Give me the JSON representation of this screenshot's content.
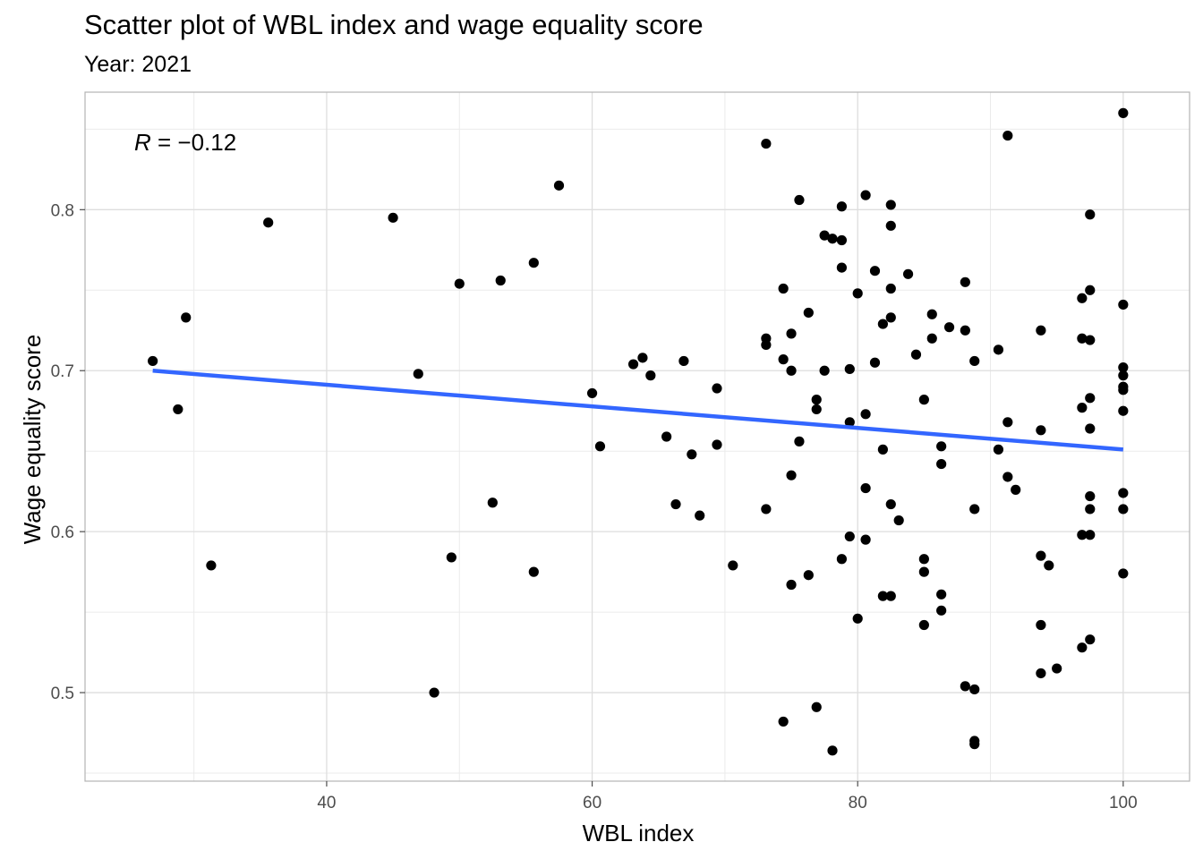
{
  "chart_data": {
    "type": "scatter",
    "title": "Scatter plot of WBL index and wage equality score",
    "subtitle": "Year: 2021",
    "xlabel": "WBL index",
    "ylabel": "Wage equality score",
    "xlim": [
      21.8,
      105
    ],
    "ylim": [
      0.445,
      0.873
    ],
    "x_ticks": [
      40,
      60,
      80,
      100
    ],
    "y_ticks": [
      0.5,
      0.6,
      0.7,
      0.8
    ],
    "x_tick_labels": [
      "40",
      "60",
      "80",
      "100"
    ],
    "y_tick_labels": [
      "0.5",
      "0.6",
      "0.7",
      "0.8"
    ],
    "grid": true,
    "annotation": {
      "italic": "R",
      "rest": " = −0.12"
    },
    "trend_line": {
      "x": [
        26.9,
        100
      ],
      "y": [
        0.7,
        0.651
      ],
      "color": "#3366FF"
    },
    "point_color": "#000000",
    "points": [
      [
        26.9,
        0.706
      ],
      [
        28.8,
        0.676
      ],
      [
        29.4,
        0.733
      ],
      [
        31.3,
        0.579
      ],
      [
        35.6,
        0.792
      ],
      [
        45.0,
        0.795
      ],
      [
        46.9,
        0.698
      ],
      [
        48.1,
        0.5
      ],
      [
        49.4,
        0.584
      ],
      [
        50.0,
        0.754
      ],
      [
        52.5,
        0.618
      ],
      [
        53.1,
        0.756
      ],
      [
        55.6,
        0.767
      ],
      [
        55.6,
        0.575
      ],
      [
        57.5,
        0.815
      ],
      [
        60.0,
        0.686
      ],
      [
        60.6,
        0.653
      ],
      [
        63.1,
        0.704
      ],
      [
        63.8,
        0.708
      ],
      [
        64.4,
        0.697
      ],
      [
        65.6,
        0.659
      ],
      [
        66.3,
        0.617
      ],
      [
        66.9,
        0.706
      ],
      [
        67.5,
        0.648
      ],
      [
        68.1,
        0.61
      ],
      [
        69.4,
        0.689
      ],
      [
        69.4,
        0.654
      ],
      [
        70.6,
        0.579
      ],
      [
        73.1,
        0.841
      ],
      [
        73.1,
        0.72
      ],
      [
        73.1,
        0.716
      ],
      [
        73.1,
        0.614
      ],
      [
        74.4,
        0.751
      ],
      [
        74.4,
        0.707
      ],
      [
        74.4,
        0.482
      ],
      [
        75.0,
        0.723
      ],
      [
        75.0,
        0.7
      ],
      [
        75.0,
        0.635
      ],
      [
        75.0,
        0.567
      ],
      [
        75.6,
        0.806
      ],
      [
        75.6,
        0.656
      ],
      [
        76.3,
        0.736
      ],
      [
        76.3,
        0.573
      ],
      [
        76.9,
        0.682
      ],
      [
        76.9,
        0.676
      ],
      [
        76.9,
        0.491
      ],
      [
        77.5,
        0.784
      ],
      [
        77.5,
        0.7
      ],
      [
        78.1,
        0.782
      ],
      [
        78.1,
        0.464
      ],
      [
        78.8,
        0.802
      ],
      [
        78.8,
        0.781
      ],
      [
        78.8,
        0.764
      ],
      [
        78.8,
        0.583
      ],
      [
        79.4,
        0.701
      ],
      [
        79.4,
        0.668
      ],
      [
        79.4,
        0.597
      ],
      [
        80.0,
        0.748
      ],
      [
        80.0,
        0.546
      ],
      [
        80.6,
        0.809
      ],
      [
        80.6,
        0.673
      ],
      [
        80.6,
        0.627
      ],
      [
        80.6,
        0.595
      ],
      [
        81.3,
        0.762
      ],
      [
        81.3,
        0.705
      ],
      [
        81.9,
        0.729
      ],
      [
        81.9,
        0.651
      ],
      [
        81.9,
        0.56
      ],
      [
        82.5,
        0.803
      ],
      [
        82.5,
        0.79
      ],
      [
        82.5,
        0.751
      ],
      [
        82.5,
        0.733
      ],
      [
        82.5,
        0.617
      ],
      [
        82.5,
        0.56
      ],
      [
        83.1,
        0.607
      ],
      [
        83.8,
        0.76
      ],
      [
        84.4,
        0.71
      ],
      [
        85.0,
        0.682
      ],
      [
        85.0,
        0.583
      ],
      [
        85.0,
        0.575
      ],
      [
        85.0,
        0.542
      ],
      [
        85.6,
        0.735
      ],
      [
        85.6,
        0.72
      ],
      [
        86.3,
        0.653
      ],
      [
        86.3,
        0.642
      ],
      [
        86.3,
        0.561
      ],
      [
        86.3,
        0.551
      ],
      [
        86.9,
        0.727
      ],
      [
        88.1,
        0.755
      ],
      [
        88.1,
        0.725
      ],
      [
        88.1,
        0.504
      ],
      [
        88.8,
        0.706
      ],
      [
        88.8,
        0.614
      ],
      [
        88.8,
        0.502
      ],
      [
        88.8,
        0.47
      ],
      [
        88.8,
        0.468
      ],
      [
        90.6,
        0.713
      ],
      [
        90.6,
        0.651
      ],
      [
        91.3,
        0.846
      ],
      [
        91.3,
        0.668
      ],
      [
        91.3,
        0.634
      ],
      [
        91.9,
        0.626
      ],
      [
        93.8,
        0.725
      ],
      [
        93.8,
        0.663
      ],
      [
        93.8,
        0.585
      ],
      [
        93.8,
        0.542
      ],
      [
        93.8,
        0.512
      ],
      [
        94.4,
        0.579
      ],
      [
        95.0,
        0.515
      ],
      [
        96.9,
        0.745
      ],
      [
        96.9,
        0.72
      ],
      [
        96.9,
        0.677
      ],
      [
        96.9,
        0.598
      ],
      [
        96.9,
        0.528
      ],
      [
        97.5,
        0.797
      ],
      [
        97.5,
        0.75
      ],
      [
        97.5,
        0.719
      ],
      [
        97.5,
        0.683
      ],
      [
        97.5,
        0.664
      ],
      [
        97.5,
        0.622
      ],
      [
        97.5,
        0.614
      ],
      [
        97.5,
        0.598
      ],
      [
        97.5,
        0.533
      ],
      [
        100.0,
        0.86
      ],
      [
        100.0,
        0.741
      ],
      [
        100.0,
        0.702
      ],
      [
        100.0,
        0.697
      ],
      [
        100.0,
        0.69
      ],
      [
        100.0,
        0.688
      ],
      [
        100.0,
        0.675
      ],
      [
        100.0,
        0.624
      ],
      [
        100.0,
        0.614
      ],
      [
        100.0,
        0.574
      ]
    ]
  }
}
